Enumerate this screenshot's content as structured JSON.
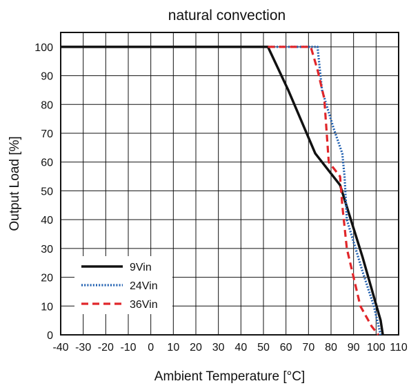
{
  "chart_data": {
    "type": "line",
    "title": "natural convection",
    "xlabel": "Ambient Temperature [°C]",
    "ylabel": "Output Load [%]",
    "xlim": [
      -40,
      110
    ],
    "ylim": [
      0,
      105
    ],
    "xticks": [
      "-40",
      "-30",
      "-20",
      "-10",
      "0",
      "10",
      "20",
      "30",
      "40",
      "50",
      "60",
      "70",
      "80",
      "90",
      "100",
      "110"
    ],
    "yticks": [
      "0",
      "10",
      "20",
      "30",
      "40",
      "50",
      "60",
      "70",
      "80",
      "90",
      "100"
    ],
    "grid": true,
    "legend_position": "bottom-left",
    "series": [
      {
        "name": "9Vin",
        "color": "#111111",
        "style": "solid",
        "x": [
          -40,
          52,
          61,
          73,
          84,
          86,
          94,
          102,
          103
        ],
        "y": [
          100,
          100,
          85,
          63,
          52,
          47,
          27,
          5,
          0
        ]
      },
      {
        "name": "24Vin",
        "color": "#1f5fb0",
        "style": "dotted",
        "x": [
          52,
          74,
          76,
          81,
          85,
          86,
          87,
          94,
          99,
          102
        ],
        "y": [
          100,
          100,
          85,
          72,
          63,
          55,
          40,
          22,
          10,
          0
        ]
      },
      {
        "name": "36Vin",
        "color": "#e0262a",
        "style": "dashed",
        "x": [
          52,
          71,
          74,
          77,
          79,
          84,
          85,
          87,
          93,
          98,
          101
        ],
        "y": [
          100,
          100,
          92,
          82,
          60,
          55,
          45,
          30,
          10,
          3,
          0
        ]
      }
    ]
  }
}
